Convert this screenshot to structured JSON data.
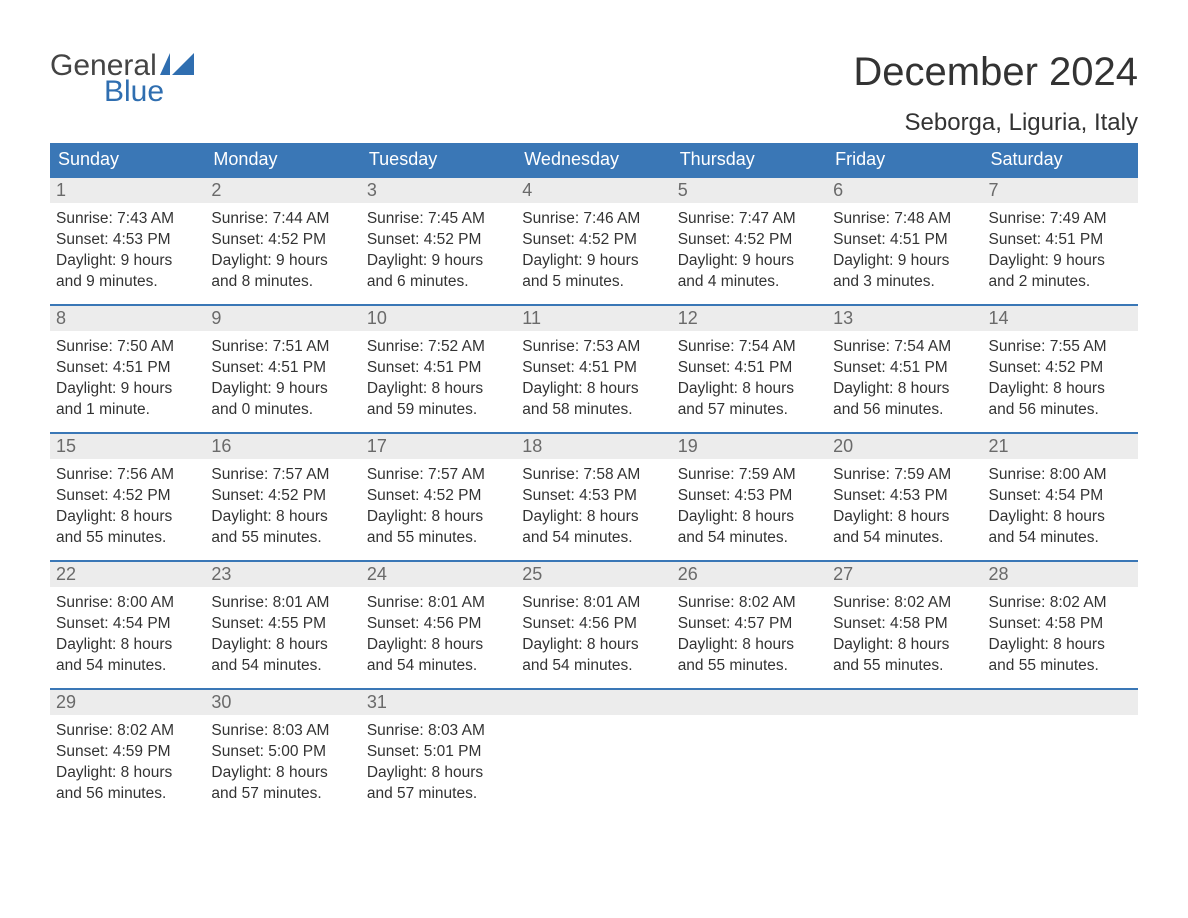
{
  "logo": {
    "general": "General",
    "blue": "Blue"
  },
  "header": {
    "month_title": "December 2024",
    "location": "Seborga, Liguria, Italy"
  },
  "colors": {
    "header_bg": "#3a77b6",
    "header_text": "#ffffff",
    "daynum_bg": "#ececec",
    "daynum_text": "#6a6a6a",
    "body_text": "#333333",
    "logo_blue": "#2f6eb0",
    "week_divider": "#3a77b6"
  },
  "weekdays": [
    "Sunday",
    "Monday",
    "Tuesday",
    "Wednesday",
    "Thursday",
    "Friday",
    "Saturday"
  ],
  "weeks": [
    [
      {
        "n": "1",
        "sr": "Sunrise: 7:43 AM",
        "ss": "Sunset: 4:53 PM",
        "d1": "Daylight: 9 hours",
        "d2": "and 9 minutes."
      },
      {
        "n": "2",
        "sr": "Sunrise: 7:44 AM",
        "ss": "Sunset: 4:52 PM",
        "d1": "Daylight: 9 hours",
        "d2": "and 8 minutes."
      },
      {
        "n": "3",
        "sr": "Sunrise: 7:45 AM",
        "ss": "Sunset: 4:52 PM",
        "d1": "Daylight: 9 hours",
        "d2": "and 6 minutes."
      },
      {
        "n": "4",
        "sr": "Sunrise: 7:46 AM",
        "ss": "Sunset: 4:52 PM",
        "d1": "Daylight: 9 hours",
        "d2": "and 5 minutes."
      },
      {
        "n": "5",
        "sr": "Sunrise: 7:47 AM",
        "ss": "Sunset: 4:52 PM",
        "d1": "Daylight: 9 hours",
        "d2": "and 4 minutes."
      },
      {
        "n": "6",
        "sr": "Sunrise: 7:48 AM",
        "ss": "Sunset: 4:51 PM",
        "d1": "Daylight: 9 hours",
        "d2": "and 3 minutes."
      },
      {
        "n": "7",
        "sr": "Sunrise: 7:49 AM",
        "ss": "Sunset: 4:51 PM",
        "d1": "Daylight: 9 hours",
        "d2": "and 2 minutes."
      }
    ],
    [
      {
        "n": "8",
        "sr": "Sunrise: 7:50 AM",
        "ss": "Sunset: 4:51 PM",
        "d1": "Daylight: 9 hours",
        "d2": "and 1 minute."
      },
      {
        "n": "9",
        "sr": "Sunrise: 7:51 AM",
        "ss": "Sunset: 4:51 PM",
        "d1": "Daylight: 9 hours",
        "d2": "and 0 minutes."
      },
      {
        "n": "10",
        "sr": "Sunrise: 7:52 AM",
        "ss": "Sunset: 4:51 PM",
        "d1": "Daylight: 8 hours",
        "d2": "and 59 minutes."
      },
      {
        "n": "11",
        "sr": "Sunrise: 7:53 AM",
        "ss": "Sunset: 4:51 PM",
        "d1": "Daylight: 8 hours",
        "d2": "and 58 minutes."
      },
      {
        "n": "12",
        "sr": "Sunrise: 7:54 AM",
        "ss": "Sunset: 4:51 PM",
        "d1": "Daylight: 8 hours",
        "d2": "and 57 minutes."
      },
      {
        "n": "13",
        "sr": "Sunrise: 7:54 AM",
        "ss": "Sunset: 4:51 PM",
        "d1": "Daylight: 8 hours",
        "d2": "and 56 minutes."
      },
      {
        "n": "14",
        "sr": "Sunrise: 7:55 AM",
        "ss": "Sunset: 4:52 PM",
        "d1": "Daylight: 8 hours",
        "d2": "and 56 minutes."
      }
    ],
    [
      {
        "n": "15",
        "sr": "Sunrise: 7:56 AM",
        "ss": "Sunset: 4:52 PM",
        "d1": "Daylight: 8 hours",
        "d2": "and 55 minutes."
      },
      {
        "n": "16",
        "sr": "Sunrise: 7:57 AM",
        "ss": "Sunset: 4:52 PM",
        "d1": "Daylight: 8 hours",
        "d2": "and 55 minutes."
      },
      {
        "n": "17",
        "sr": "Sunrise: 7:57 AM",
        "ss": "Sunset: 4:52 PM",
        "d1": "Daylight: 8 hours",
        "d2": "and 55 minutes."
      },
      {
        "n": "18",
        "sr": "Sunrise: 7:58 AM",
        "ss": "Sunset: 4:53 PM",
        "d1": "Daylight: 8 hours",
        "d2": "and 54 minutes."
      },
      {
        "n": "19",
        "sr": "Sunrise: 7:59 AM",
        "ss": "Sunset: 4:53 PM",
        "d1": "Daylight: 8 hours",
        "d2": "and 54 minutes."
      },
      {
        "n": "20",
        "sr": "Sunrise: 7:59 AM",
        "ss": "Sunset: 4:53 PM",
        "d1": "Daylight: 8 hours",
        "d2": "and 54 minutes."
      },
      {
        "n": "21",
        "sr": "Sunrise: 8:00 AM",
        "ss": "Sunset: 4:54 PM",
        "d1": "Daylight: 8 hours",
        "d2": "and 54 minutes."
      }
    ],
    [
      {
        "n": "22",
        "sr": "Sunrise: 8:00 AM",
        "ss": "Sunset: 4:54 PM",
        "d1": "Daylight: 8 hours",
        "d2": "and 54 minutes."
      },
      {
        "n": "23",
        "sr": "Sunrise: 8:01 AM",
        "ss": "Sunset: 4:55 PM",
        "d1": "Daylight: 8 hours",
        "d2": "and 54 minutes."
      },
      {
        "n": "24",
        "sr": "Sunrise: 8:01 AM",
        "ss": "Sunset: 4:56 PM",
        "d1": "Daylight: 8 hours",
        "d2": "and 54 minutes."
      },
      {
        "n": "25",
        "sr": "Sunrise: 8:01 AM",
        "ss": "Sunset: 4:56 PM",
        "d1": "Daylight: 8 hours",
        "d2": "and 54 minutes."
      },
      {
        "n": "26",
        "sr": "Sunrise: 8:02 AM",
        "ss": "Sunset: 4:57 PM",
        "d1": "Daylight: 8 hours",
        "d2": "and 55 minutes."
      },
      {
        "n": "27",
        "sr": "Sunrise: 8:02 AM",
        "ss": "Sunset: 4:58 PM",
        "d1": "Daylight: 8 hours",
        "d2": "and 55 minutes."
      },
      {
        "n": "28",
        "sr": "Sunrise: 8:02 AM",
        "ss": "Sunset: 4:58 PM",
        "d1": "Daylight: 8 hours",
        "d2": "and 55 minutes."
      }
    ],
    [
      {
        "n": "29",
        "sr": "Sunrise: 8:02 AM",
        "ss": "Sunset: 4:59 PM",
        "d1": "Daylight: 8 hours",
        "d2": "and 56 minutes."
      },
      {
        "n": "30",
        "sr": "Sunrise: 8:03 AM",
        "ss": "Sunset: 5:00 PM",
        "d1": "Daylight: 8 hours",
        "d2": "and 57 minutes."
      },
      {
        "n": "31",
        "sr": "Sunrise: 8:03 AM",
        "ss": "Sunset: 5:01 PM",
        "d1": "Daylight: 8 hours",
        "d2": "and 57 minutes."
      },
      {
        "empty": true
      },
      {
        "empty": true
      },
      {
        "empty": true
      },
      {
        "empty": true
      }
    ]
  ]
}
